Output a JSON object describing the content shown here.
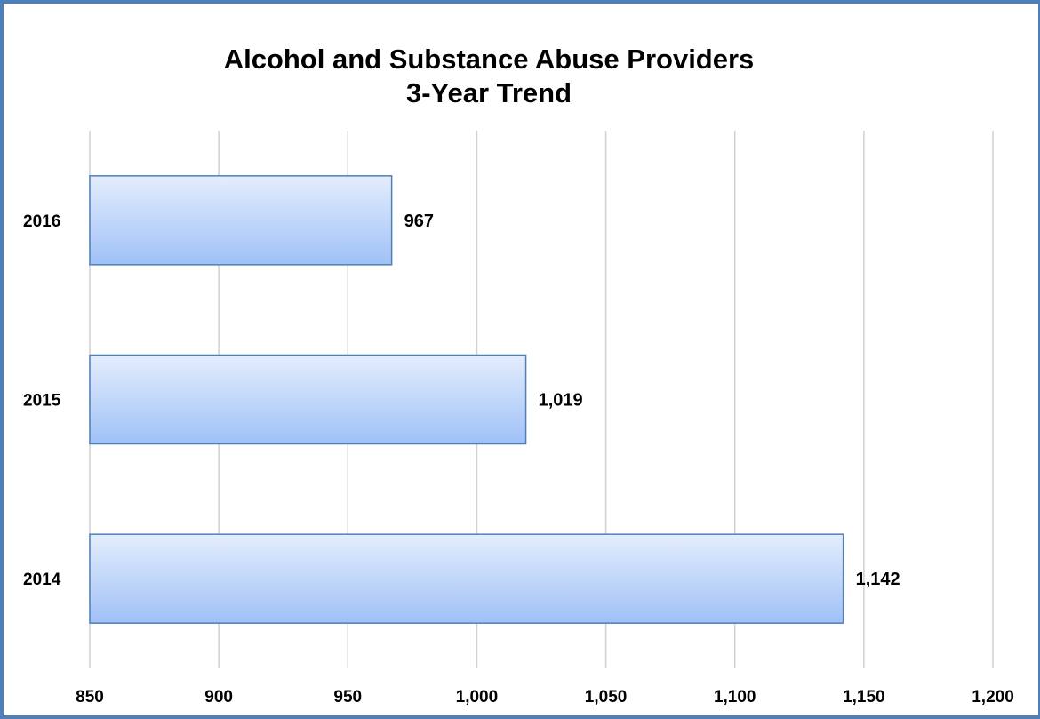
{
  "chart_data": {
    "type": "bar",
    "orientation": "horizontal",
    "title_lines": [
      "Alcohol and Substance Abuse Providers",
      "3-Year Trend"
    ],
    "categories": [
      "2016",
      "2015",
      "2014"
    ],
    "values": [
      967,
      1019,
      1142
    ],
    "value_labels": [
      "967",
      "1,019",
      "1,142"
    ],
    "x_ticks": [
      850,
      900,
      950,
      1000,
      1050,
      1100,
      1150,
      1200
    ],
    "x_tick_labels": [
      "850",
      "900",
      "950",
      "1,000",
      "1,050",
      "1,100",
      "1,150",
      "1,200"
    ],
    "xlim": [
      850,
      1200
    ],
    "grid": true,
    "legend": "none",
    "colors": {
      "bar_top": "#e4edfd",
      "bar_bottom": "#9fc1f7",
      "bar_border": "#4f7fb8",
      "grid": "#d0d0d0",
      "frame": "#4f7fb8"
    }
  }
}
